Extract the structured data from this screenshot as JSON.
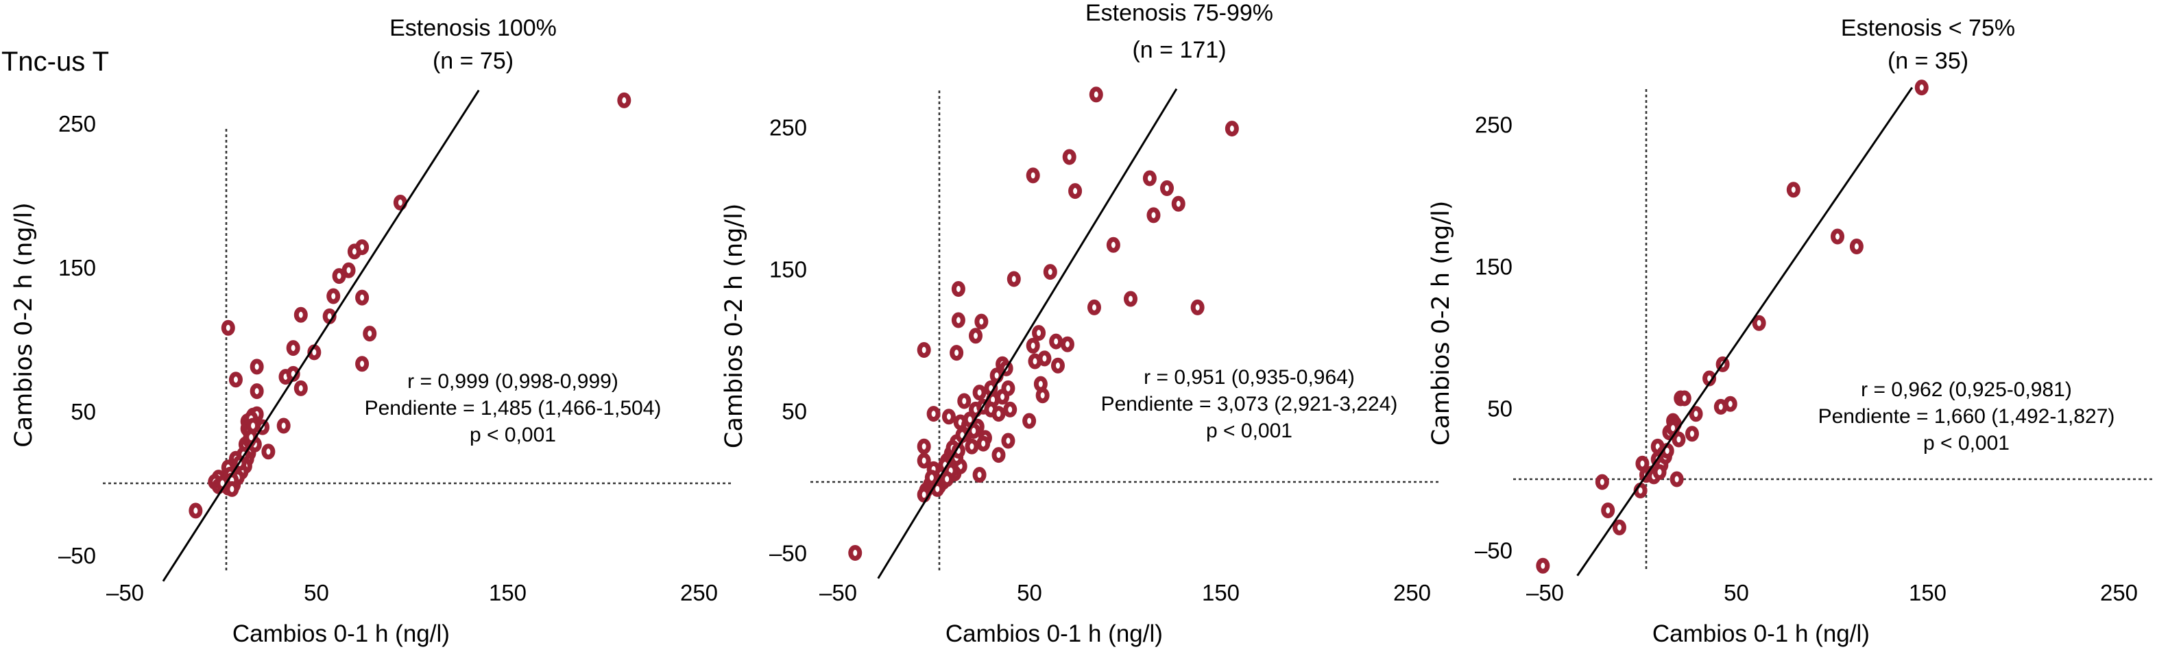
{
  "figure_label": "Tnc-us T",
  "colors": {
    "points": "#9b2335",
    "regression_line": "#000000",
    "reference_lines": "#333333"
  },
  "chart_data": [
    {
      "type": "scatter",
      "title": "Estenosis 100%",
      "subtitle": "(n = 75)",
      "xlabel": "Cambios 0-1 h (ng/l)",
      "ylabel": "Cambios 0-2 h (ng/l)",
      "xlim": [
        -70,
        270
      ],
      "ylim": [
        -68,
        275
      ],
      "x_ticks": [
        -50,
        50,
        150,
        250
      ],
      "x_tick_labels": [
        "–50",
        "50",
        "150",
        "250"
      ],
      "y_ticks": [
        -50,
        50,
        150,
        250
      ],
      "y_tick_labels": [
        "–50",
        "50",
        "150",
        "250"
      ],
      "grid": false,
      "reference_lines": {
        "x": 0,
        "y": 0
      },
      "regression_line": {
        "x": [
          -33,
          132
        ],
        "y": [
          -68,
          273
        ]
      },
      "stats": [
        "r = 0,999 (0,998-0,999)",
        "Pendiente = 1,485 (1,466-1,504)",
        "p < 0,001"
      ],
      "points": [
        [
          208,
          266
        ],
        [
          91,
          195
        ],
        [
          71,
          164
        ],
        [
          67,
          161
        ],
        [
          64,
          148
        ],
        [
          59,
          144
        ],
        [
          56,
          130
        ],
        [
          71,
          129
        ],
        [
          39,
          117
        ],
        [
          54,
          116
        ],
        [
          1,
          108
        ],
        [
          75,
          104
        ],
        [
          35,
          94
        ],
        [
          46,
          91
        ],
        [
          71,
          83
        ],
        [
          16,
          81
        ],
        [
          5,
          72
        ],
        [
          31,
          74
        ],
        [
          35,
          76
        ],
        [
          16,
          64
        ],
        [
          39,
          66
        ],
        [
          30,
          40
        ],
        [
          22,
          22
        ],
        [
          -16,
          -19
        ],
        [
          14,
          47
        ],
        [
          16,
          48
        ],
        [
          11,
          43
        ],
        [
          11,
          38
        ],
        [
          12,
          36
        ],
        [
          19,
          39
        ],
        [
          10,
          27
        ],
        [
          15,
          27
        ],
        [
          12,
          21
        ],
        [
          11,
          17
        ],
        [
          5,
          17
        ],
        [
          10,
          12
        ],
        [
          1,
          11
        ],
        [
          8,
          8
        ],
        [
          6,
          4
        ],
        [
          -4,
          4
        ],
        [
          -6,
          1
        ],
        [
          -4,
          -2
        ],
        [
          1,
          -3
        ],
        [
          4,
          -1
        ],
        [
          0,
          1
        ],
        [
          2,
          6
        ],
        [
          13,
          45
        ],
        [
          12,
          30
        ],
        [
          9,
          20
        ],
        [
          7,
          14
        ],
        [
          3,
          2
        ],
        [
          -2,
          0
        ],
        [
          3,
          -4
        ],
        [
          13,
          32
        ],
        [
          14,
          40
        ]
      ]
    },
    {
      "type": "scatter",
      "title": "Estenosis 75-99%",
      "subtitle": "(n = 171)",
      "xlabel": "Cambios 0-1 h (ng/l)",
      "ylabel": "Cambios 0-2 h (ng/l)",
      "xlim": [
        -70,
        270
      ],
      "ylim": [
        -68,
        275
      ],
      "x_ticks": [
        -50,
        50,
        150,
        250
      ],
      "x_tick_labels": [
        "–50",
        "50",
        "150",
        "250"
      ],
      "y_ticks": [
        -50,
        50,
        150,
        250
      ],
      "y_tick_labels": [
        "–50",
        "50",
        "150",
        "250"
      ],
      "grid": false,
      "reference_lines": {
        "x": 0,
        "y": 0
      },
      "regression_line": {
        "x": [
          -32,
          124
        ],
        "y": [
          -68,
          277
        ]
      },
      "stats": [
        "r = 0,951 (0,935-0,964)",
        "Pendiente = 3,073 (2,921-3,224)",
        "p  < 0,001"
      ],
      "points": [
        [
          82,
          273
        ],
        [
          153,
          249
        ],
        [
          68,
          229
        ],
        [
          49,
          216
        ],
        [
          71,
          205
        ],
        [
          110,
          214
        ],
        [
          119,
          207
        ],
        [
          125,
          196
        ],
        [
          112,
          188
        ],
        [
          91,
          167
        ],
        [
          58,
          148
        ],
        [
          39,
          143
        ],
        [
          10,
          136
        ],
        [
          100,
          129
        ],
        [
          81,
          123
        ],
        [
          135,
          123
        ],
        [
          10,
          114
        ],
        [
          22,
          113
        ],
        [
          19,
          103
        ],
        [
          -8,
          93
        ],
        [
          9,
          91
        ],
        [
          52,
          105
        ],
        [
          49,
          96
        ],
        [
          61,
          99
        ],
        [
          67,
          97
        ],
        [
          50,
          85
        ],
        [
          55,
          87
        ],
        [
          62,
          82
        ],
        [
          33,
          83
        ],
        [
          53,
          69
        ],
        [
          54,
          61
        ],
        [
          47,
          43
        ],
        [
          35,
          80
        ],
        [
          30,
          75
        ],
        [
          27,
          66
        ],
        [
          36,
          66
        ],
        [
          21,
          63
        ],
        [
          33,
          60
        ],
        [
          28,
          58
        ],
        [
          13,
          57
        ],
        [
          19,
          51
        ],
        [
          23,
          53
        ],
        [
          27,
          51
        ],
        [
          31,
          48
        ],
        [
          37,
          51
        ],
        [
          -3,
          48
        ],
        [
          5,
          46
        ],
        [
          11,
          42
        ],
        [
          20,
          39
        ],
        [
          14,
          34
        ],
        [
          24,
          31
        ],
        [
          23,
          27
        ],
        [
          36,
          29
        ],
        [
          9,
          28
        ],
        [
          17,
          25
        ],
        [
          -8,
          25
        ],
        [
          31,
          19
        ],
        [
          -8,
          15
        ],
        [
          6,
          20
        ],
        [
          4,
          15
        ],
        [
          11,
          11
        ],
        [
          8,
          6
        ],
        [
          21,
          5
        ],
        [
          -3,
          9
        ],
        [
          1,
          5
        ],
        [
          -2,
          1
        ],
        [
          2,
          0
        ],
        [
          -5,
          -2
        ],
        [
          -7,
          -6
        ],
        [
          -8,
          -9
        ],
        [
          0,
          -3
        ],
        [
          -44,
          -50
        ],
        [
          15,
          40
        ],
        [
          12,
          33
        ],
        [
          7,
          24
        ],
        [
          3,
          12
        ],
        [
          9,
          17
        ],
        [
          -4,
          3
        ],
        [
          6,
          8
        ],
        [
          16,
          44
        ],
        [
          18,
          36
        ],
        [
          10,
          22
        ],
        [
          -1,
          -5
        ],
        [
          4,
          2
        ]
      ]
    },
    {
      "type": "scatter",
      "title": "Estenosis < 75%",
      "subtitle": "(n = 35)",
      "xlabel": "Cambios 0-1 h (ng/l)",
      "ylabel": "Cambios 0-2 h (ng/l)",
      "xlim": [
        -70,
        270
      ],
      "ylim": [
        -68,
        275
      ],
      "x_ticks": [
        -50,
        50,
        150,
        250
      ],
      "x_tick_labels": [
        "–50",
        "50",
        "150",
        "250"
      ],
      "y_ticks": [
        -50,
        50,
        150,
        250
      ],
      "y_tick_labels": [
        "–50",
        "50",
        "150",
        "250"
      ],
      "grid": false,
      "reference_lines": {
        "x": 0,
        "y": 0
      },
      "regression_line": {
        "x": [
          -36,
          139
        ],
        "y": [
          -68,
          276
        ]
      },
      "stats": [
        "r = 0,962 (0,925-0,981)",
        "Pendiente = 1,660 (1,492-1,827)",
        "p  < 0,001"
      ],
      "points": [
        [
          144,
          276
        ],
        [
          77,
          204
        ],
        [
          100,
          171
        ],
        [
          110,
          164
        ],
        [
          59,
          110
        ],
        [
          40,
          81
        ],
        [
          33,
          71
        ],
        [
          18,
          57
        ],
        [
          20,
          57
        ],
        [
          39,
          51
        ],
        [
          44,
          53
        ],
        [
          26,
          46
        ],
        [
          14,
          41
        ],
        [
          15,
          39
        ],
        [
          12,
          33
        ],
        [
          24,
          32
        ],
        [
          17,
          28
        ],
        [
          6,
          23
        ],
        [
          9,
          18
        ],
        [
          6,
          14
        ],
        [
          8,
          10
        ],
        [
          -2,
          11
        ],
        [
          0,
          3
        ],
        [
          3,
          4
        ],
        [
          16,
          0
        ],
        [
          -23,
          -2
        ],
        [
          -3,
          -8
        ],
        [
          -20,
          -22
        ],
        [
          -14,
          -34
        ],
        [
          -54,
          -61
        ],
        [
          10,
          16
        ],
        [
          4,
          2
        ],
        [
          11,
          20
        ],
        [
          7,
          5
        ],
        [
          14,
          36
        ]
      ]
    }
  ]
}
